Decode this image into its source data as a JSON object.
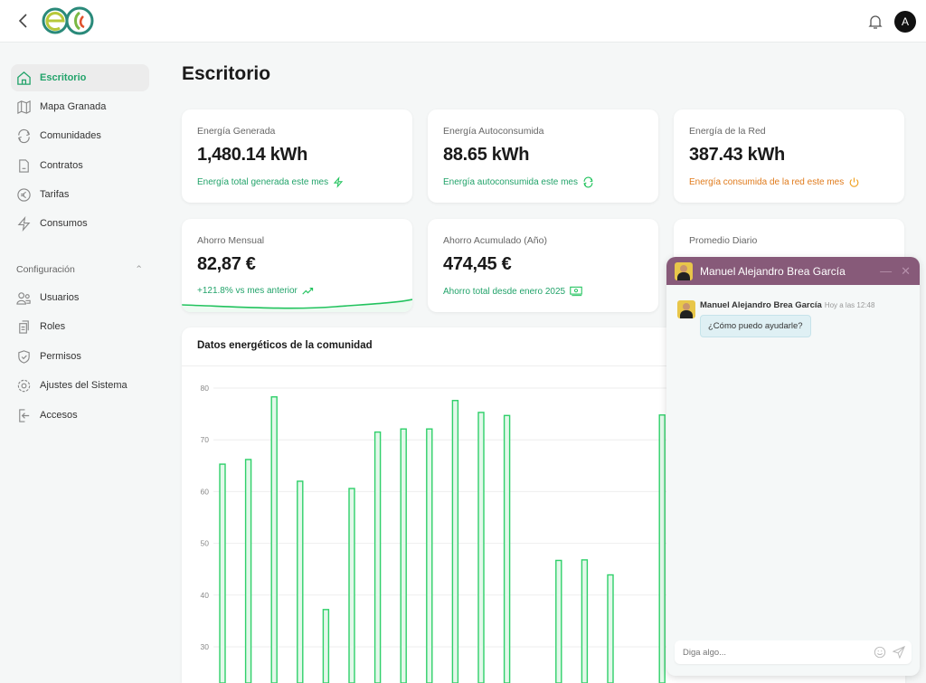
{
  "header": {
    "avatar_initial": "A"
  },
  "sidebar": {
    "items": [
      {
        "label": "Escritorio",
        "icon": "home-icon"
      },
      {
        "label": "Mapa Granada",
        "icon": "map-icon"
      },
      {
        "label": "Comunidades",
        "icon": "refresh-icon"
      },
      {
        "label": "Contratos",
        "icon": "file-icon"
      },
      {
        "label": "Tarifas",
        "icon": "euro-icon"
      },
      {
        "label": "Consumos",
        "icon": "bolt-icon"
      }
    ],
    "section": "Configuración",
    "config_items": [
      {
        "label": "Usuarios",
        "icon": "users-icon"
      },
      {
        "label": "Roles",
        "icon": "clipboard-icon"
      },
      {
        "label": "Permisos",
        "icon": "shield-icon"
      },
      {
        "label": "Ajustes del Sistema",
        "icon": "gear-icon"
      },
      {
        "label": "Accesos",
        "icon": "login-icon"
      }
    ]
  },
  "page": {
    "title": "Escritorio"
  },
  "cards": [
    {
      "label": "Energía Generada",
      "value": "1,480.14 kWh",
      "sub": "Energía total generada este mes"
    },
    {
      "label": "Energía Autoconsumida",
      "value": "88.65 kWh",
      "sub": "Energía autoconsumida este mes"
    },
    {
      "label": "Energía de la Red",
      "value": "387.43 kWh",
      "sub": "Energía consumida de la red este mes"
    },
    {
      "label": "Ahorro Mensual",
      "value": "82,87 €",
      "sub": "+121.8% vs mes anterior"
    },
    {
      "label": "Ahorro Acumulado (Año)",
      "value": "474,45 €",
      "sub": "Ahorro total desde enero 2025"
    },
    {
      "label": "Promedio Diario",
      "value": "",
      "sub": ""
    }
  ],
  "colors": {
    "accent": "#22a36a",
    "bar": "#2fd06a",
    "orange": "#e07b1c",
    "chat_header": "#875a79"
  },
  "chart_data": {
    "type": "bar",
    "title": "Datos energéticos de la comunidad",
    "yticks": [
      30,
      40,
      50,
      60,
      70,
      80
    ],
    "grid": true,
    "values": [
      65.3,
      66.2,
      78.3,
      62.0,
      37.2,
      60.6,
      71.5,
      72.1,
      72.1,
      77.6,
      75.3,
      74.7,
      null,
      46.7,
      46.8,
      43.9,
      null,
      74.8
    ]
  },
  "chat": {
    "name": "Manuel Alejandro Brea García",
    "time": "Hoy a las 12:48",
    "message": "¿Cómo puedo ayudarle?",
    "placeholder": "Diga algo..."
  }
}
